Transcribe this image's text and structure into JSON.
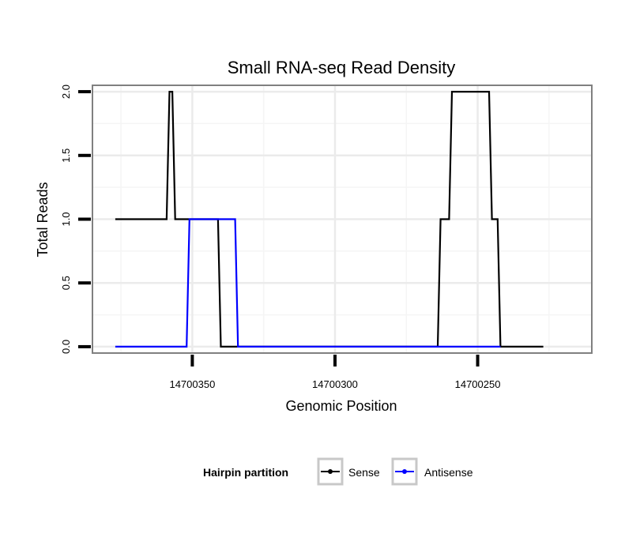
{
  "chart_data": {
    "type": "line",
    "title": "Small RNA-seq Read Density",
    "xlabel": "Genomic Position",
    "ylabel": "Total Reads",
    "x_reversed": true,
    "xlim": [
      14700385,
      14700210
    ],
    "ylim": [
      -0.05,
      2.05
    ],
    "x_ticks": [
      14700350,
      14700300,
      14700250
    ],
    "x_tick_labels": [
      "14700350",
      "14700300",
      "14700250"
    ],
    "y_ticks": [
      0,
      0.5,
      1,
      1.5,
      2
    ],
    "y_tick_labels": [
      "0.0",
      "0.5",
      "1.0",
      "1.5",
      "2.0"
    ],
    "grid": true,
    "legend": {
      "title": "Hairpin partition",
      "position": "bottom"
    },
    "series": [
      {
        "name": "Sense",
        "color": "#000000",
        "x": [
          14700377,
          14700359,
          14700358,
          14700357,
          14700356,
          14700355,
          14700348,
          14700341,
          14700340,
          14700334,
          14700264,
          14700263,
          14700260,
          14700259,
          14700246,
          14700245,
          14700243,
          14700242,
          14700241,
          14700227
        ],
        "y": [
          1,
          1,
          2,
          2,
          1,
          1,
          1,
          1,
          0,
          0,
          0,
          1,
          1,
          2,
          2,
          1,
          1,
          0,
          0,
          0
        ]
      },
      {
        "name": "Antisense",
        "color": "#0000ff",
        "x": [
          14700377,
          14700352,
          14700351,
          14700335,
          14700334,
          14700242
        ],
        "y": [
          0,
          0,
          1,
          1,
          0,
          0
        ]
      }
    ]
  }
}
